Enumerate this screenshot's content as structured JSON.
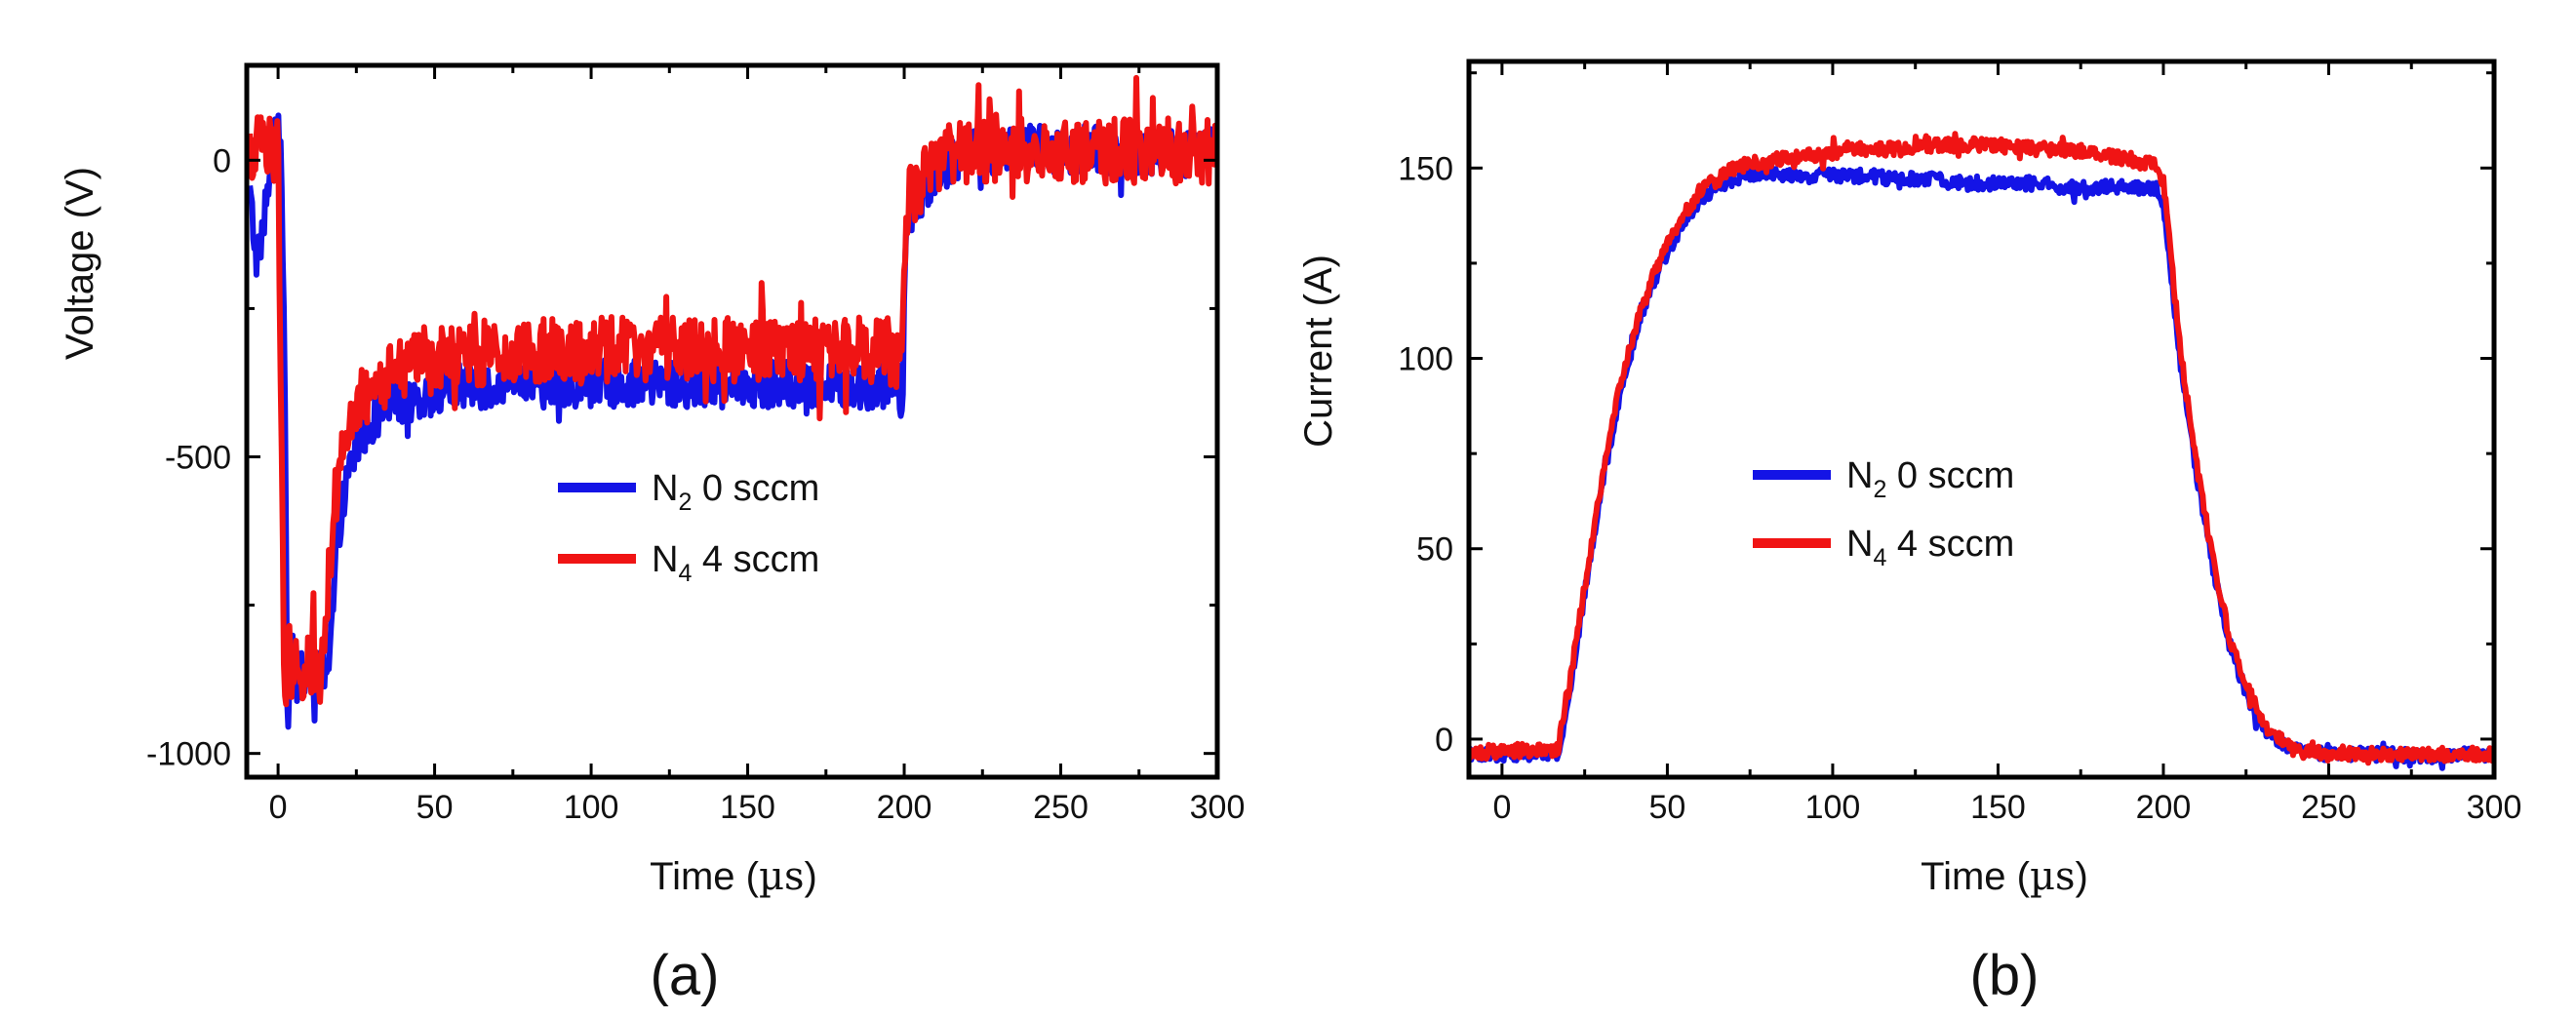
{
  "figure": {
    "panels": [
      "(a)",
      "(b)"
    ]
  },
  "colors": {
    "series_0": "#1414e6",
    "series_1": "#f01414",
    "axis": "#000000",
    "background": "#ffffff"
  },
  "chart_data": [
    {
      "type": "line",
      "panel_label": "(a)",
      "title": "",
      "xlabel": "Time (µs)",
      "xlabel_main": "Time (",
      "xlabel_unit": "µs",
      "xlabel_close": ")",
      "ylabel": "Voltage (V)",
      "xlim": [
        -10,
        300
      ],
      "ylim": [
        -1040,
        160
      ],
      "x_ticks": [
        0,
        50,
        100,
        150,
        200,
        250,
        300
      ],
      "y_ticks": [
        0,
        -500,
        -1000
      ],
      "x_tick_labels": [
        "0",
        "50",
        "100",
        "150",
        "200",
        "250",
        "300"
      ],
      "y_tick_labels": [
        "0",
        "-500",
        "-1000"
      ],
      "grid": false,
      "legend_position": "center-right",
      "series": [
        {
          "name": "N2 0 sccm",
          "label_base": "N",
          "label_sub": "2",
          "label_rest": " 0 sccm",
          "color": "#1414e6",
          "x": [
            -9,
            -7,
            -5,
            -3,
            -1,
            0,
            1,
            2,
            3,
            4,
            5,
            6,
            7,
            8,
            10,
            12,
            14,
            16,
            18,
            20,
            23,
            26,
            30,
            35,
            40,
            45,
            50,
            55,
            60,
            70,
            80,
            90,
            100,
            110,
            120,
            130,
            140,
            150,
            160,
            170,
            180,
            190,
            198,
            199.5,
            200,
            201,
            202,
            205,
            210,
            215,
            220,
            230,
            240,
            250,
            260,
            270,
            280,
            290,
            300
          ],
          "y": [
            -60,
            -160,
            -120,
            -40,
            40,
            40,
            20,
            -300,
            -980,
            -820,
            -850,
            -880,
            -840,
            -870,
            -850,
            -880,
            -860,
            -880,
            -720,
            -600,
            -520,
            -470,
            -440,
            -420,
            -400,
            -395,
            -390,
            -385,
            -380,
            -380,
            -375,
            -380,
            -375,
            -378,
            -375,
            -380,
            -378,
            -375,
            -380,
            -378,
            -380,
            -380,
            -380,
            -400,
            -200,
            -100,
            -80,
            -60,
            -20,
            0,
            10,
            15,
            20,
            15,
            20,
            10,
            15,
            10,
            15
          ],
          "noise": 40
        },
        {
          "name": "N4 4 sccm",
          "label_base": "N",
          "label_sub": "4",
          "label_rest": " 4 sccm",
          "color": "#f01414",
          "x": [
            -9,
            -5,
            -2,
            0,
            1,
            2,
            3,
            4,
            5,
            6,
            8,
            10,
            12,
            14,
            16,
            18,
            20,
            23,
            26,
            30,
            35,
            40,
            45,
            50,
            55,
            60,
            70,
            80,
            90,
            100,
            110,
            120,
            130,
            140,
            150,
            160,
            170,
            180,
            190,
            198,
            199.5,
            200,
            201,
            202,
            205,
            210,
            215,
            220,
            230,
            240,
            250,
            260,
            270,
            280,
            290,
            300
          ],
          "y": [
            20,
            30,
            20,
            10,
            -400,
            -980,
            -820,
            -840,
            -860,
            -830,
            -870,
            -850,
            -860,
            -860,
            -700,
            -580,
            -490,
            -440,
            -410,
            -390,
            -370,
            -350,
            -340,
            -335,
            -330,
            -325,
            -325,
            -320,
            -322,
            -320,
            -318,
            -320,
            -318,
            -320,
            -318,
            -320,
            -322,
            -320,
            -320,
            -330,
            -350,
            -150,
            -80,
            -60,
            -40,
            0,
            10,
            15,
            20,
            15,
            20,
            15,
            15,
            10,
            15,
            15
          ],
          "noise": 55
        }
      ]
    },
    {
      "type": "line",
      "panel_label": "(b)",
      "title": "",
      "xlabel": "Time (µs)",
      "xlabel_main": "Time (",
      "xlabel_unit": "µs",
      "xlabel_close": ")",
      "ylabel": "Current (A)",
      "xlim": [
        -10,
        300
      ],
      "ylim": [
        -10,
        178
      ],
      "x_ticks": [
        0,
        50,
        100,
        150,
        200,
        250,
        300
      ],
      "y_ticks": [
        0,
        50,
        100,
        150
      ],
      "x_tick_labels": [
        "0",
        "50",
        "100",
        "150",
        "200",
        "250",
        "300"
      ],
      "y_tick_labels": [
        "0",
        "50",
        "100",
        "150"
      ],
      "grid": false,
      "legend_position": "center",
      "series": [
        {
          "name": "N2 0 sccm",
          "label_base": "N",
          "label_sub": "2",
          "label_rest": " 0 sccm",
          "color": "#1414e6",
          "x": [
            -10,
            0,
            10,
            16,
            17,
            20,
            25,
            30,
            35,
            40,
            45,
            50,
            55,
            60,
            65,
            70,
            75,
            80,
            90,
            100,
            110,
            120,
            130,
            140,
            150,
            160,
            170,
            180,
            190,
            198,
            200,
            202,
            205,
            210,
            215,
            220,
            225,
            230,
            235,
            240,
            250,
            260,
            270,
            280,
            290,
            300
          ],
          "y": [
            -4,
            -4,
            -4,
            -3,
            -5,
            10,
            38,
            65,
            88,
            105,
            118,
            128,
            136,
            142,
            145,
            147,
            148,
            149,
            148,
            148,
            148,
            147,
            147,
            146,
            146,
            146,
            145,
            145,
            145,
            145,
            140,
            125,
            100,
            70,
            45,
            25,
            12,
            3,
            -1,
            -3,
            -4,
            -4,
            -4,
            -5,
            -4,
            -4
          ],
          "noise": 1.8
        },
        {
          "name": "N4 4 sccm",
          "label_base": "N",
          "label_sub": "4",
          "label_rest": " 4 sccm",
          "color": "#f01414",
          "x": [
            -10,
            0,
            10,
            16,
            17,
            20,
            25,
            30,
            35,
            40,
            45,
            50,
            55,
            60,
            65,
            70,
            75,
            80,
            90,
            100,
            110,
            120,
            130,
            140,
            150,
            160,
            170,
            180,
            190,
            198,
            200,
            202,
            205,
            210,
            215,
            220,
            225,
            230,
            235,
            240,
            250,
            260,
            270,
            280,
            290,
            300
          ],
          "y": [
            -4,
            -3,
            -3,
            -3,
            -2,
            12,
            40,
            67,
            90,
            107,
            120,
            130,
            138,
            144,
            147,
            150,
            151,
            152,
            153,
            154,
            155,
            155,
            156,
            156,
            156,
            155,
            155,
            154,
            152,
            151,
            146,
            130,
            103,
            72,
            47,
            27,
            14,
            5,
            0,
            -3,
            -4,
            -4,
            -4,
            -4,
            -4,
            -4
          ],
          "noise": 1.8
        }
      ]
    }
  ]
}
